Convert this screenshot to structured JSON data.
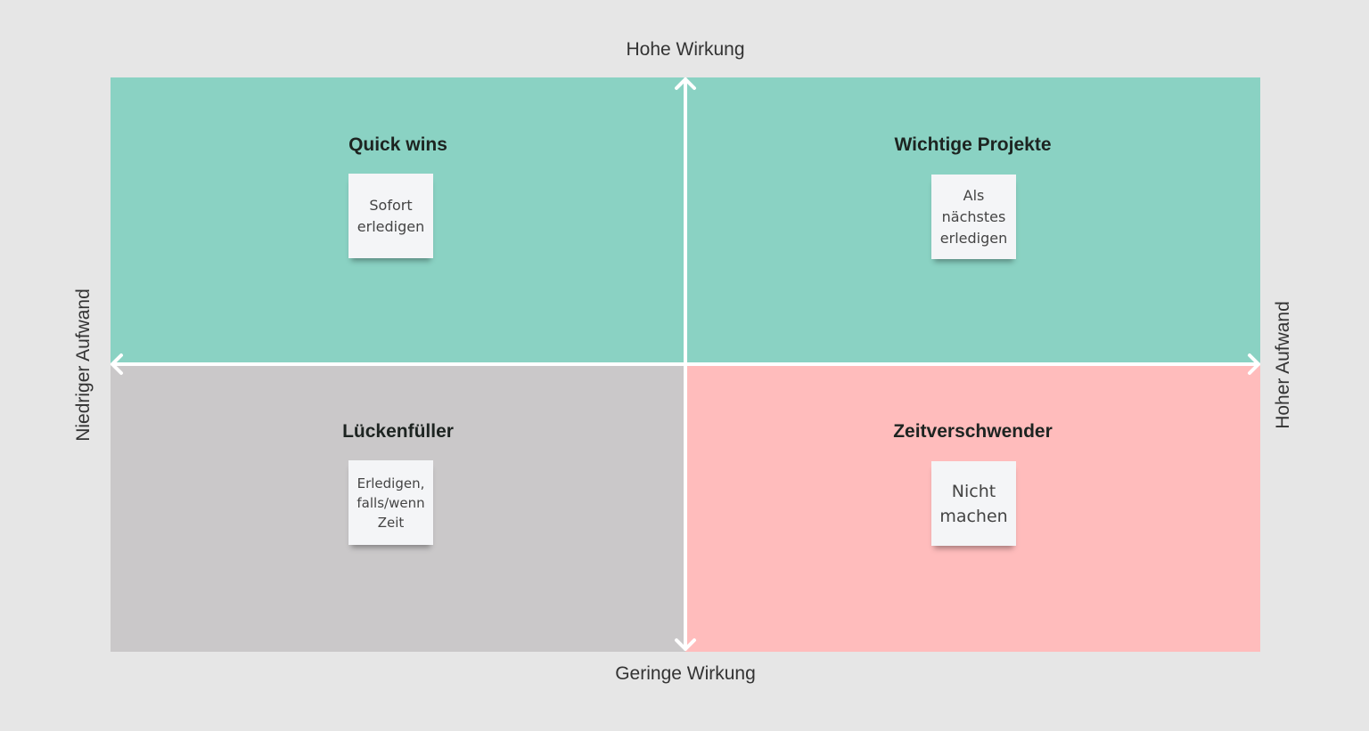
{
  "axes": {
    "top": "Hohe Wirkung",
    "bottom": "Geringe Wirkung",
    "left": "Niedriger Aufwand",
    "right": "Hoher Aufwand"
  },
  "quadrants": {
    "top_left": {
      "title": "Quick wins",
      "note": "Sofort\nerledigen",
      "color": "#8ad2c3"
    },
    "top_right": {
      "title": "Wichtige Projekte",
      "note": "Als\nnächstes\nerledigen",
      "color": "#8ad2c3"
    },
    "bottom_left": {
      "title": "Lückenfüller",
      "note": "Erledigen,\nfalls/wenn\nZeit",
      "color": "#cac8c9"
    },
    "bottom_right": {
      "title": "Zeitverschwender",
      "note": "Nicht\nmachen",
      "color": "#ffbcbc"
    }
  }
}
